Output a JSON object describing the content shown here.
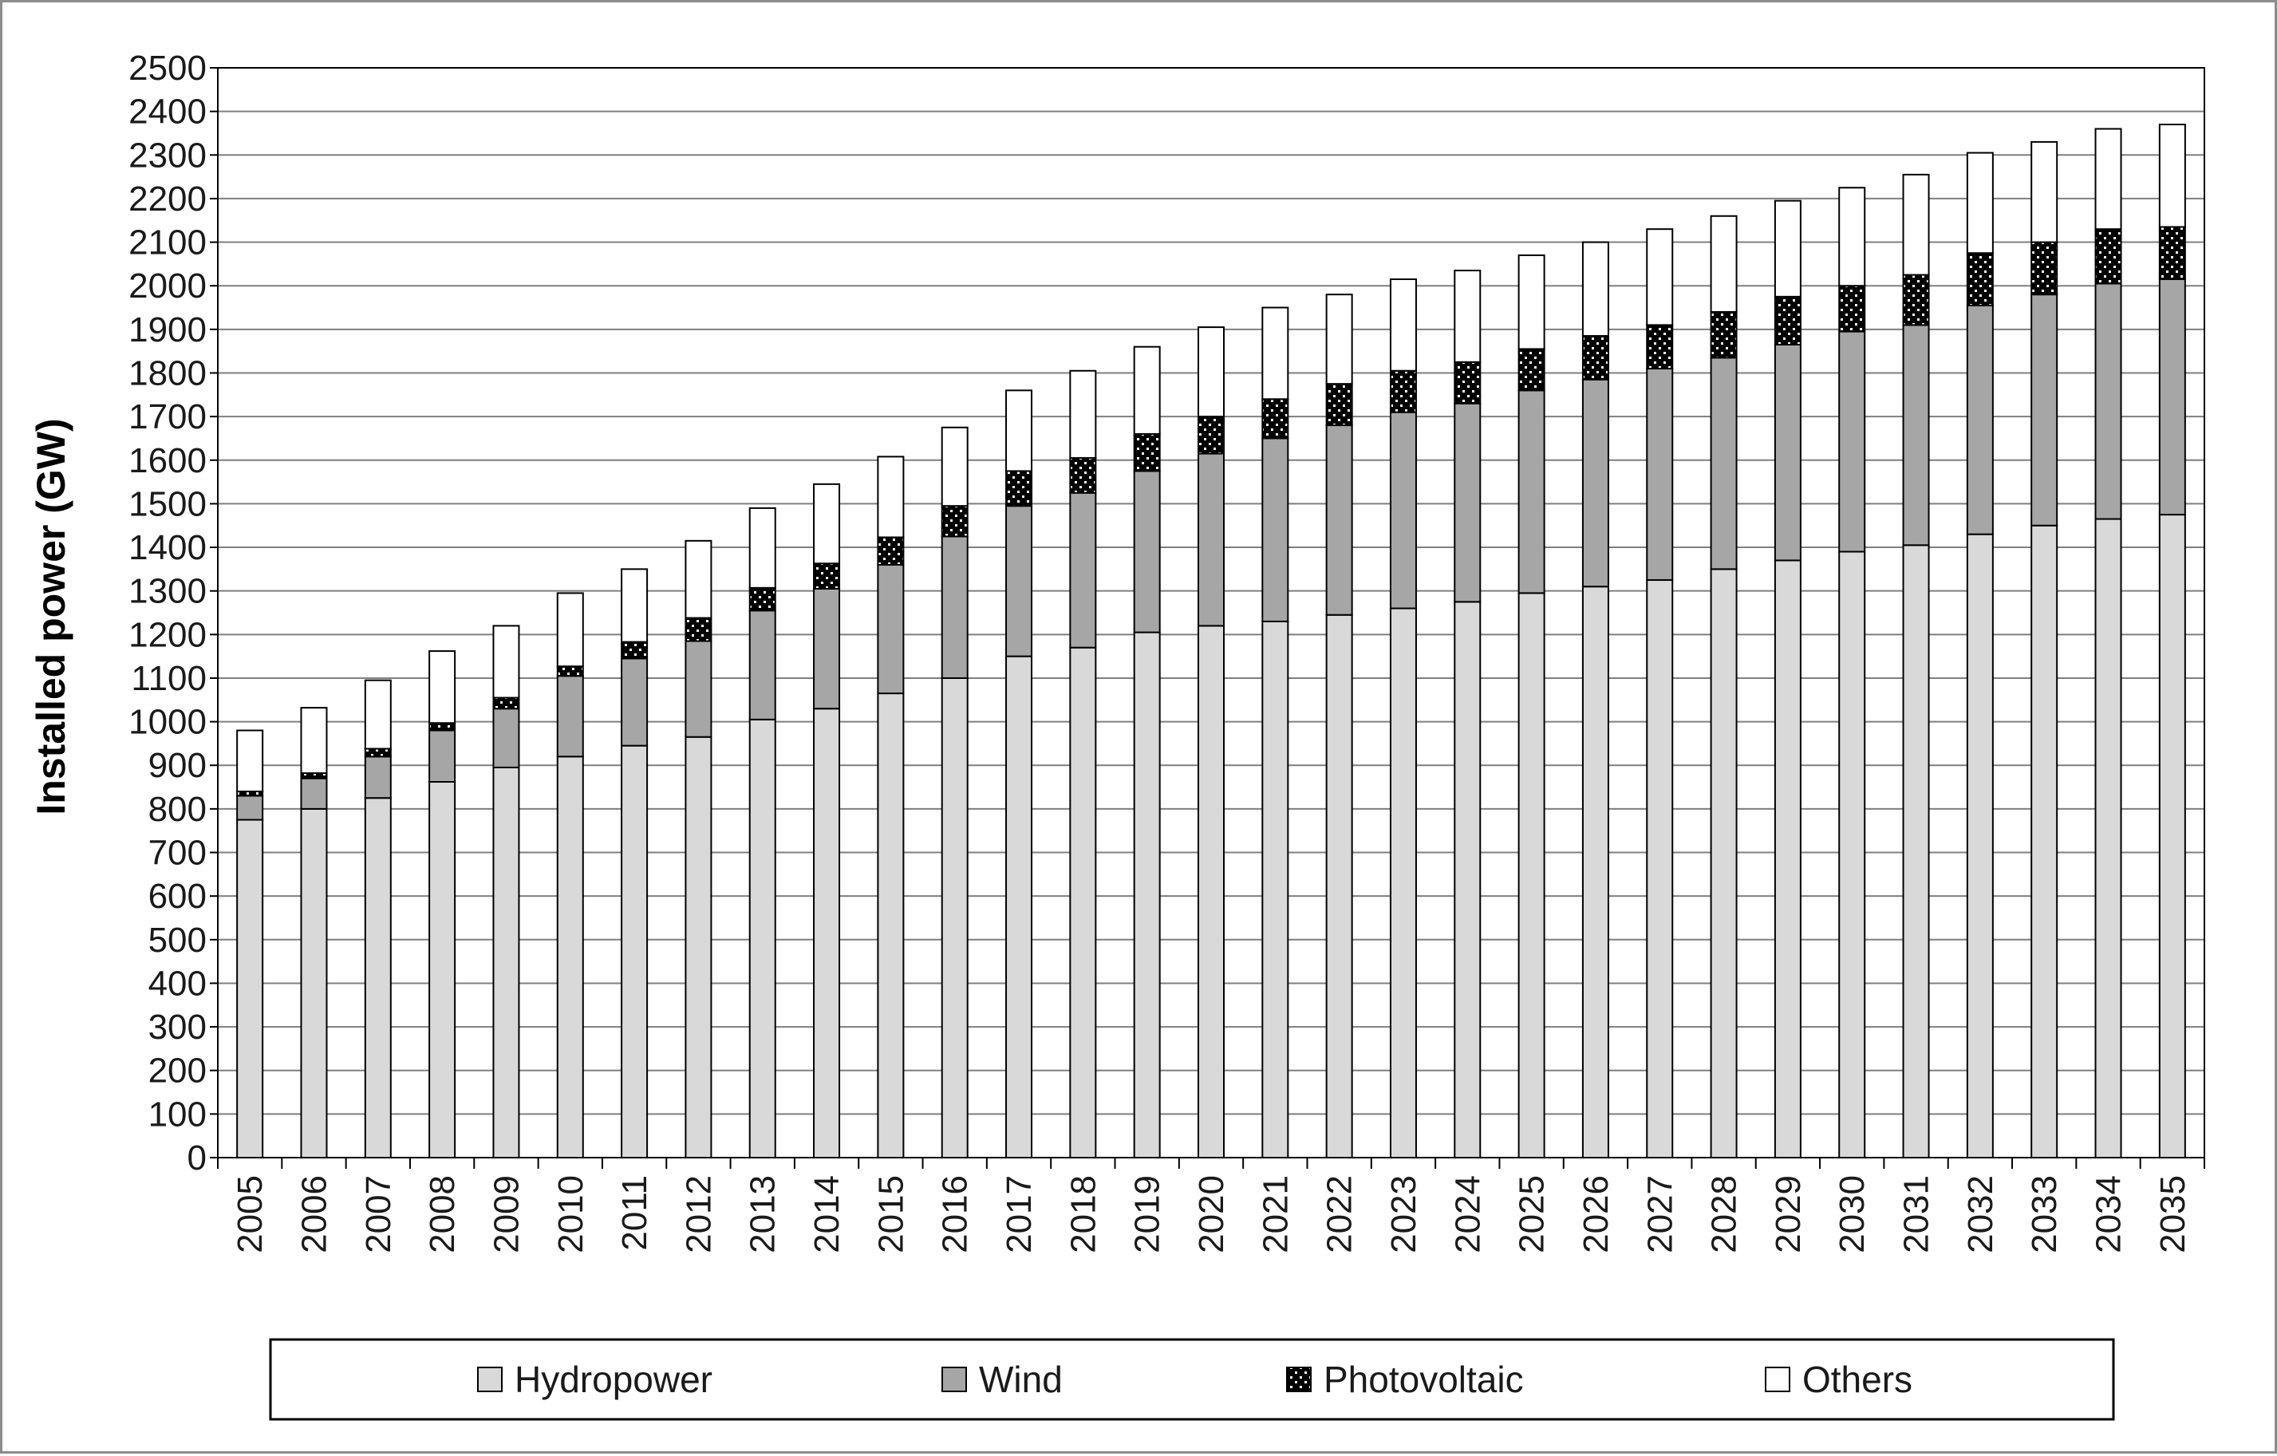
{
  "chart_data": {
    "type": "bar",
    "stacked": true,
    "title": "",
    "xlabel": "",
    "ylabel": "Installed power (GW)",
    "ylim": [
      0,
      2500
    ],
    "yticks": [
      0,
      100,
      200,
      300,
      400,
      500,
      600,
      700,
      800,
      900,
      1000,
      1100,
      1200,
      1300,
      1400,
      1500,
      1600,
      1700,
      1800,
      1900,
      2000,
      2100,
      2200,
      2300,
      2400,
      2500
    ],
    "grid": true,
    "legend_position": "bottom",
    "categories": [
      "2005",
      "2006",
      "2007",
      "2008",
      "2009",
      "2010",
      "2011",
      "2012",
      "2013",
      "2014",
      "2015",
      "2016",
      "2017",
      "2018",
      "2019",
      "2020",
      "2021",
      "2022",
      "2023",
      "2024",
      "2025",
      "2026",
      "2027",
      "2028",
      "2029",
      "2030",
      "2031",
      "2032",
      "2033",
      "2034",
      "2035"
    ],
    "series": [
      {
        "name": "Hydropower",
        "color": "#d9d9d9",
        "pattern": "solid",
        "values": [
          775,
          800,
          825,
          862,
          895,
          920,
          945,
          965,
          1005,
          1030,
          1065,
          1100,
          1150,
          1170,
          1205,
          1220,
          1230,
          1245,
          1260,
          1275,
          1295,
          1310,
          1325,
          1350,
          1370,
          1390,
          1405,
          1430,
          1450,
          1465,
          1475
        ]
      },
      {
        "name": "Wind",
        "color": "#a6a6a6",
        "pattern": "solid",
        "values": [
          55,
          70,
          95,
          118,
          135,
          185,
          200,
          220,
          250,
          275,
          295,
          325,
          345,
          355,
          370,
          395,
          420,
          435,
          450,
          455,
          465,
          475,
          485,
          485,
          495,
          505,
          505,
          525,
          530,
          540,
          540
        ]
      },
      {
        "name": "Photovoltaic",
        "color": "#000000",
        "pattern": "checker",
        "values": [
          10,
          12,
          18,
          17,
          25,
          22,
          38,
          53,
          52,
          58,
          63,
          70,
          80,
          80,
          85,
          85,
          90,
          95,
          95,
          95,
          95,
          100,
          100,
          105,
          110,
          105,
          115,
          120,
          120,
          125,
          120
        ]
      },
      {
        "name": "Others",
        "color": "#ffffff",
        "pattern": "solid",
        "values": [
          140,
          150,
          157,
          165,
          165,
          168,
          167,
          177,
          183,
          182,
          185,
          180,
          185,
          200,
          200,
          205,
          210,
          205,
          210,
          210,
          215,
          215,
          220,
          220,
          220,
          225,
          230,
          230,
          230,
          230,
          235
        ]
      }
    ]
  }
}
